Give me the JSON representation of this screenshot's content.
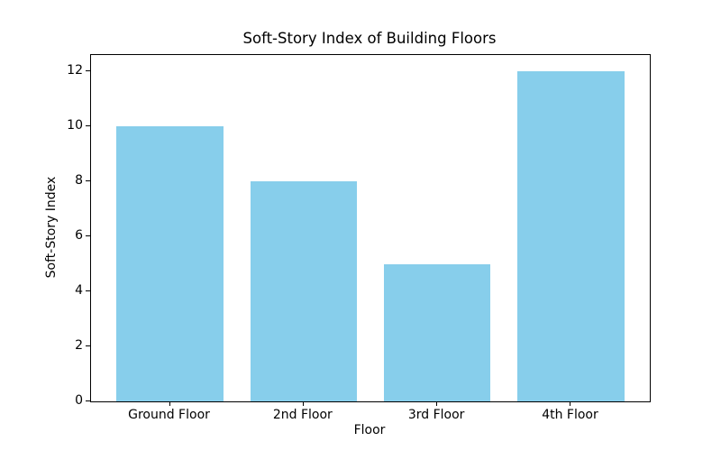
{
  "chart_data": {
    "type": "bar",
    "title": "Soft-Story Index of Building Floors",
    "xlabel": "Floor",
    "ylabel": "Soft-Story Index",
    "categories": [
      "Ground Floor",
      "2nd Floor",
      "3rd Floor",
      "4th Floor"
    ],
    "values": [
      10,
      8,
      5,
      12
    ],
    "bar_color": "#87CEEB",
    "ylim": [
      0,
      12.6
    ],
    "yticks": [
      0,
      2,
      4,
      6,
      8,
      10,
      12
    ],
    "xlim": [
      -0.59,
      3.59
    ],
    "bar_width_units": 0.8,
    "grid": false,
    "legend_position": "none"
  }
}
